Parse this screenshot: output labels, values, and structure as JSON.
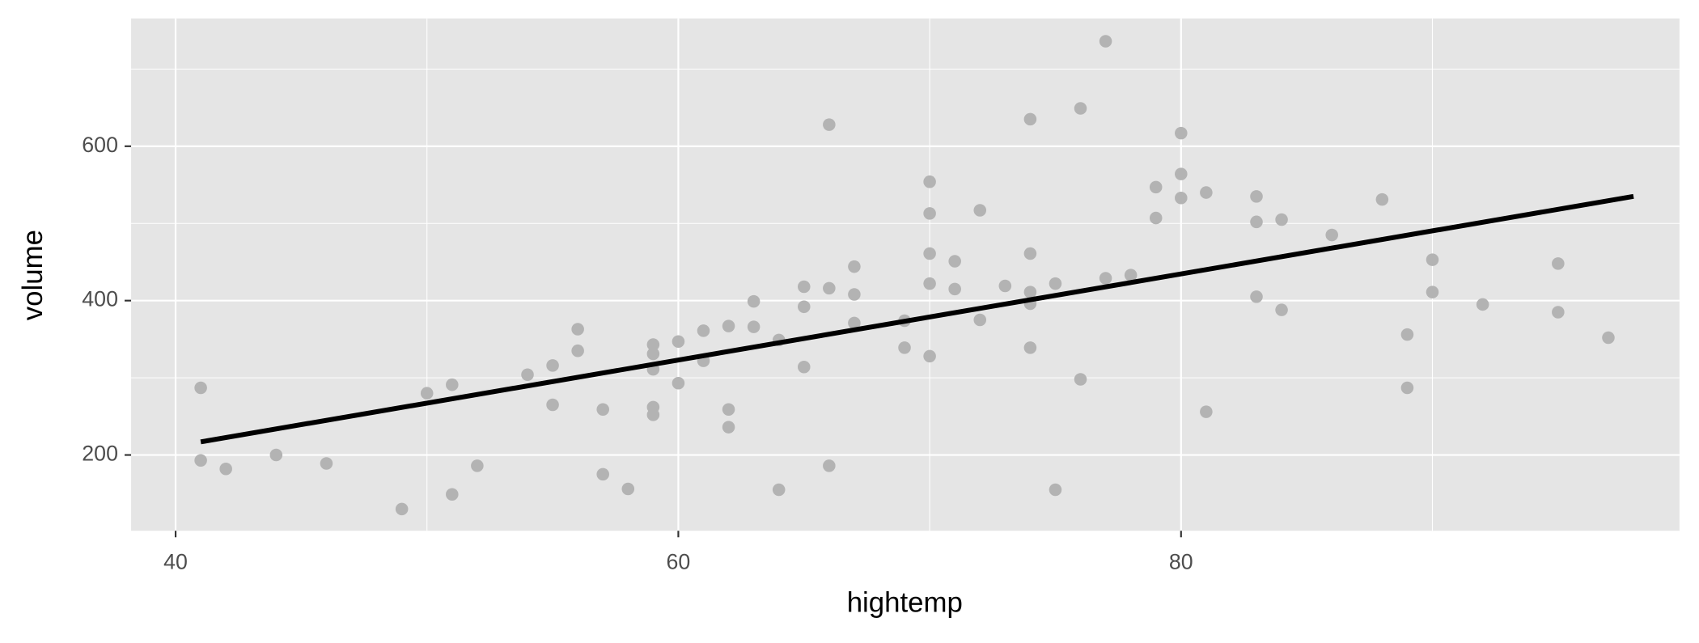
{
  "chart_data": {
    "type": "scatter",
    "x_label": "hightemp",
    "y_label": "volume",
    "xlim": [
      38.23,
      99.83
    ],
    "ylim": [
      101.8,
      765.6
    ],
    "xticks": [
      40,
      60,
      80
    ],
    "yticks": [
      200,
      400,
      600
    ],
    "x_minor_ticks": [
      50,
      70,
      90
    ],
    "y_minor_ticks": [
      300,
      500,
      700
    ],
    "grid": true,
    "panel_color": "#e5e5e5",
    "points": {
      "color": "#b3b3b3",
      "x": [
        41,
        41,
        42,
        44,
        46,
        49,
        50,
        51,
        51,
        52,
        54,
        55,
        55,
        56,
        56,
        57,
        57,
        58,
        59,
        59,
        59,
        59,
        59,
        60,
        60,
        61,
        61,
        62,
        62,
        62,
        63,
        63,
        64,
        64,
        65,
        65,
        65,
        66,
        66,
        66,
        67,
        67,
        67,
        69,
        69,
        70,
        70,
        70,
        70,
        70,
        71,
        71,
        72,
        72,
        73,
        74,
        74,
        74,
        74,
        74,
        75,
        75,
        76,
        76,
        77,
        77,
        78,
        79,
        79,
        80,
        80,
        80,
        81,
        81,
        83,
        83,
        83,
        84,
        84,
        86,
        88,
        89,
        89,
        90,
        90,
        92,
        95,
        95,
        97
      ],
      "values": [
        287,
        193,
        182,
        200,
        189,
        130,
        280,
        291,
        149,
        186,
        304,
        316,
        265,
        363,
        335,
        259,
        175,
        156,
        343,
        331,
        311,
        262,
        252,
        347,
        293,
        361,
        322,
        367,
        259,
        236,
        399,
        366,
        349,
        155,
        418,
        392,
        314,
        628,
        416,
        186,
        444,
        408,
        371,
        374,
        339,
        554,
        513,
        461,
        422,
        328,
        451,
        415,
        517,
        375,
        419,
        635,
        461,
        411,
        396,
        339,
        422,
        155,
        649,
        298,
        736,
        429,
        433,
        547,
        507,
        617,
        564,
        533,
        540,
        256,
        535,
        502,
        405,
        505,
        388,
        485,
        531,
        356,
        287,
        453,
        411,
        395,
        448,
        385,
        352
      ]
    },
    "fit_line": {
      "color": "#000000",
      "x": [
        41,
        98
      ],
      "values": [
        217,
        535
      ]
    }
  }
}
